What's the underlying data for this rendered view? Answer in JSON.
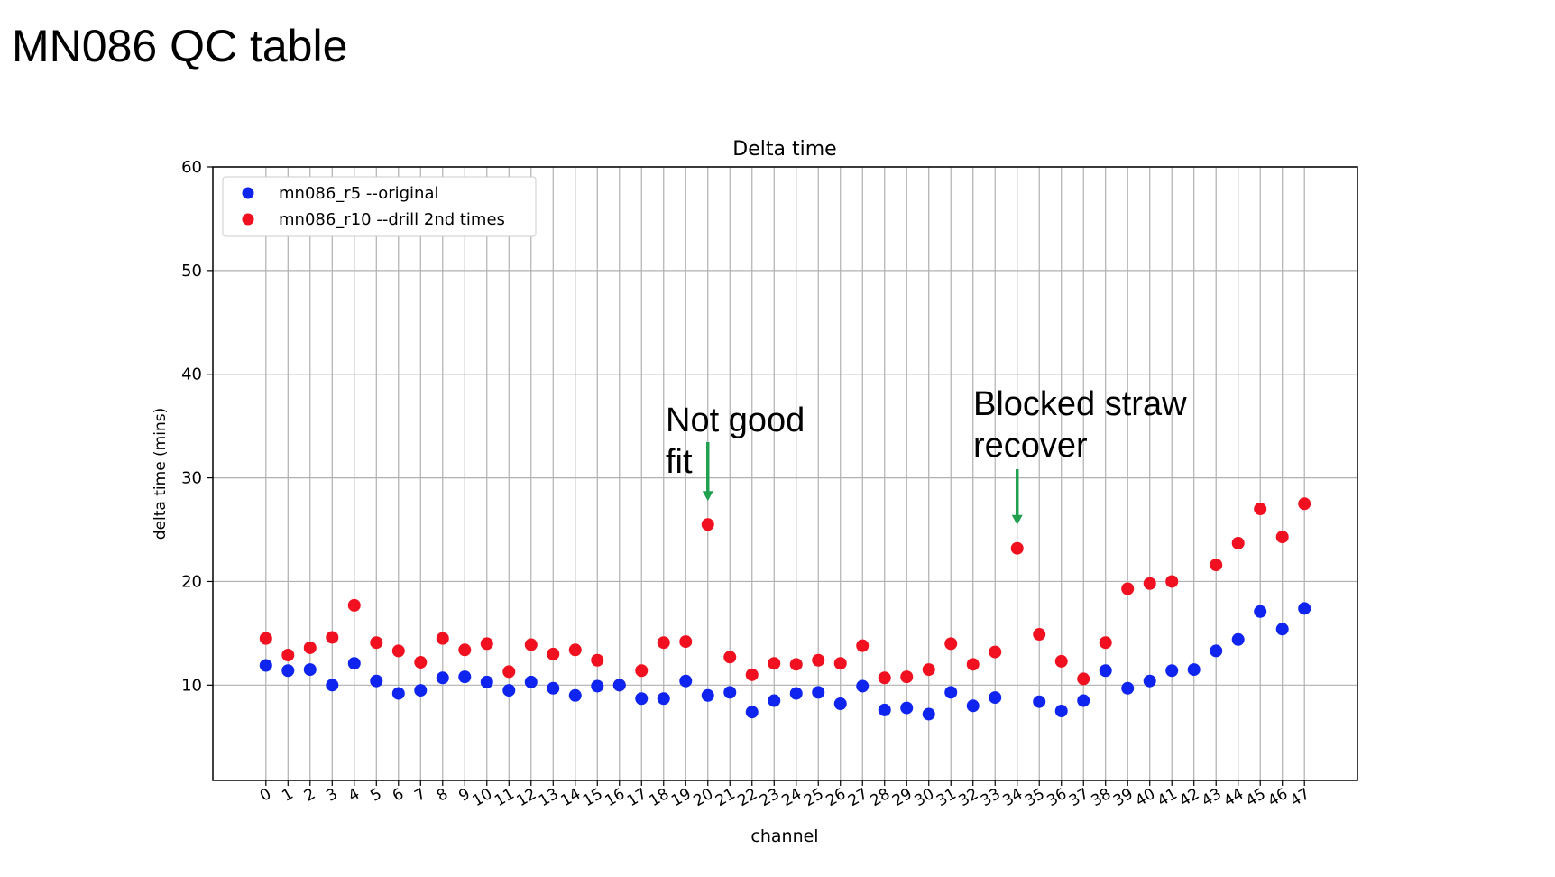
{
  "slide": {
    "title": "MN086 QC table"
  },
  "annotations": [
    {
      "id": "not-good-fit",
      "lines": [
        "Not good",
        "fit"
      ],
      "target_channel": 20,
      "target_value": 25.5,
      "arrow_color": "#21a050"
    },
    {
      "id": "blocked-straw",
      "lines": [
        "Blocked straw",
        "recover"
      ],
      "target_channel": 34,
      "target_value": 23.2,
      "arrow_color": "#21a050"
    }
  ],
  "chart_data": {
    "type": "scatter",
    "title": "Delta time",
    "xlabel": "channel",
    "ylabel": "delta time (mins)",
    "ylim": [
      0.8,
      60
    ],
    "yticks": [
      10,
      20,
      30,
      40,
      50,
      60
    ],
    "x": [
      0,
      1,
      2,
      3,
      4,
      5,
      6,
      7,
      8,
      9,
      10,
      11,
      12,
      13,
      14,
      15,
      16,
      17,
      18,
      19,
      20,
      21,
      22,
      23,
      24,
      25,
      26,
      27,
      28,
      29,
      30,
      31,
      32,
      33,
      34,
      35,
      36,
      37,
      38,
      39,
      40,
      41,
      42,
      43,
      44,
      45,
      46,
      47
    ],
    "grid": true,
    "legend_position": "top-left",
    "series": [
      {
        "name": "mn086_r5 --original",
        "color": "#1024f0",
        "values": [
          11.9,
          11.4,
          11.5,
          10.0,
          12.1,
          10.4,
          9.2,
          9.5,
          10.7,
          10.8,
          10.3,
          9.5,
          10.3,
          9.7,
          9.0,
          9.9,
          10.0,
          8.7,
          8.7,
          10.4,
          9.0,
          9.3,
          7.4,
          8.5,
          9.2,
          9.3,
          8.2,
          9.9,
          7.6,
          7.8,
          7.2,
          9.3,
          8.0,
          8.8,
          null,
          8.4,
          7.5,
          8.5,
          11.4,
          9.7,
          10.4,
          11.4,
          11.5,
          13.3,
          14.4,
          17.1,
          15.4,
          17.4
        ]
      },
      {
        "name": "mn086_r10 --drill 2nd times",
        "color": "#f01020",
        "values": [
          14.5,
          12.9,
          13.6,
          14.6,
          17.7,
          14.1,
          13.3,
          12.2,
          14.5,
          13.4,
          14.0,
          11.3,
          13.9,
          13.0,
          13.4,
          12.4,
          10.0,
          11.4,
          14.1,
          14.2,
          25.5,
          12.7,
          11.0,
          12.1,
          12.0,
          12.4,
          12.1,
          13.8,
          10.7,
          10.8,
          11.5,
          14.0,
          12.0,
          13.2,
          23.2,
          14.9,
          12.3,
          10.6,
          14.1,
          19.3,
          19.8,
          20.0,
          null,
          21.6,
          23.7,
          27.0,
          24.3,
          27.5
        ]
      }
    ]
  }
}
